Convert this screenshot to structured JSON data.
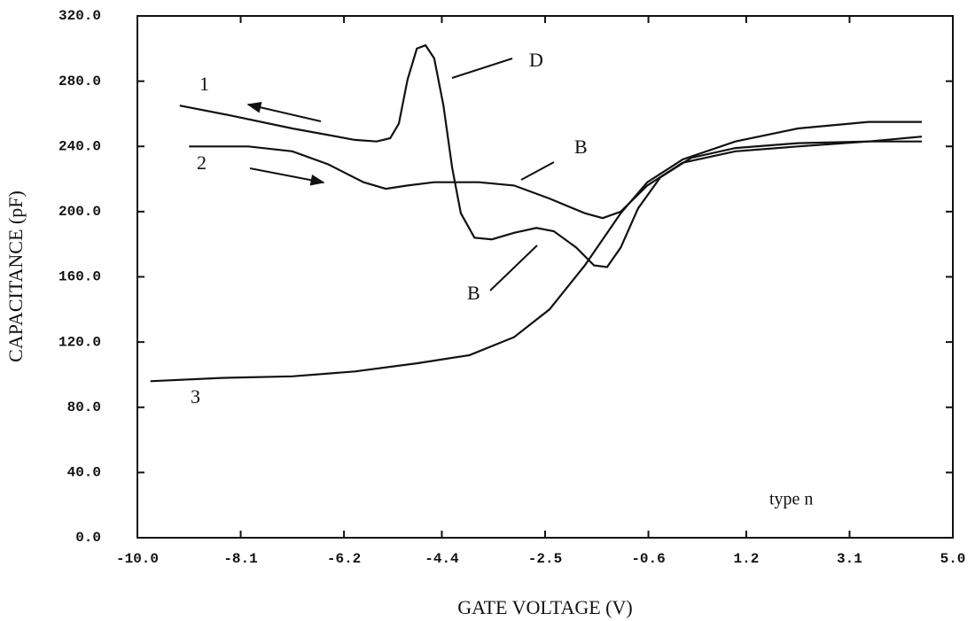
{
  "chart_data": {
    "type": "line",
    "x_label": "GATE VOLTAGE (V)",
    "y_label": "CAPACITANCE (pF)",
    "xlim": [
      -10,
      5
    ],
    "ylim": [
      0,
      320
    ],
    "xticks": [
      {
        "value": -10,
        "label": "-10.0"
      },
      -8.1,
      -6.2,
      -4.4,
      -2.5,
      -0.6,
      1.2,
      3.1,
      {
        "value": 5,
        "label": "5.0"
      }
    ],
    "yticks": [
      {
        "value": 0,
        "label": "0.0"
      },
      {
        "value": 40,
        "label": "40.0"
      },
      {
        "value": 80,
        "label": "80.0"
      },
      {
        "value": 120,
        "label": "120.0"
      },
      {
        "value": 160,
        "label": "160.0"
      },
      {
        "value": 200,
        "label": "200.0"
      },
      {
        "value": 240,
        "label": "240.0"
      },
      {
        "value": 280,
        "label": "280.0"
      },
      {
        "value": 320,
        "label": "320.0"
      }
    ],
    "grid": false,
    "annotations": [
      "D",
      "B",
      "B",
      "type n"
    ],
    "series": [
      {
        "name": "1",
        "color": "#111111",
        "x": [
          -9.22,
          -8.29,
          -7.15,
          -6.0,
          -5.6,
          -5.35,
          -5.19,
          -5.03,
          -4.86,
          -4.7,
          -4.54,
          -4.37,
          -4.21,
          -4.05,
          -3.8,
          -3.48,
          -3.07,
          -2.66,
          -2.34,
          -1.93,
          -1.6,
          -1.36,
          -1.11,
          -0.79,
          -0.38,
          0.19,
          1.0,
          2.15,
          3.45,
          4.43
        ],
        "values": [
          265,
          259,
          251,
          244,
          243,
          245,
          254,
          281,
          300,
          302,
          294,
          265,
          227,
          199,
          184,
          183,
          187,
          190,
          188,
          178,
          167,
          166,
          178,
          202,
          221,
          233,
          239,
          242,
          243,
          243
        ]
      },
      {
        "name": "2",
        "color": "#111111",
        "x": [
          -9.05,
          -7.96,
          -7.15,
          -6.49,
          -5.84,
          -5.43,
          -5.03,
          -4.54,
          -3.72,
          -3.07,
          -2.42,
          -1.77,
          -1.44,
          -1.11,
          -0.62,
          0.03,
          1.0,
          2.15,
          3.45,
          4.43
        ],
        "values": [
          240,
          240,
          237,
          229,
          218,
          214,
          216,
          218,
          218,
          216,
          208,
          199,
          196,
          200,
          216,
          230,
          237,
          240,
          243,
          246
        ]
      },
      {
        "name": "3",
        "color": "#111111",
        "x": [
          -9.76,
          -8.45,
          -7.15,
          -6.0,
          -4.86,
          -3.89,
          -3.07,
          -2.42,
          -1.77,
          -1.11,
          -0.62,
          0.03,
          1.0,
          2.15,
          3.45,
          4.43
        ],
        "values": [
          96,
          98,
          99,
          102,
          107,
          112,
          123,
          140,
          167,
          199,
          218,
          232,
          243,
          251,
          255,
          255
        ]
      }
    ]
  }
}
